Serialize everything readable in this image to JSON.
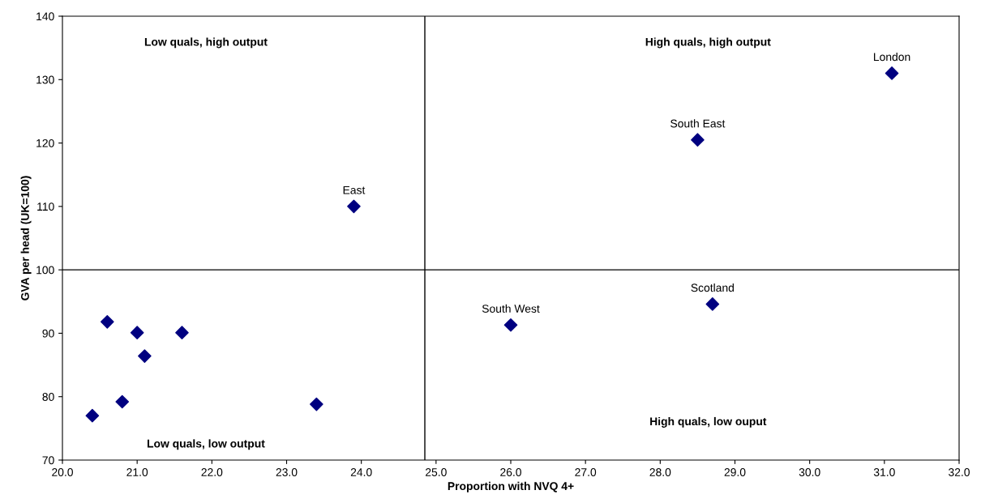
{
  "chart_data": {
    "type": "scatter",
    "xlabel": "Proportion with NVQ 4+",
    "ylabel": "GVA per head (UK=100)",
    "x": [
      20.6,
      21.0,
      21.6,
      21.1,
      20.8,
      20.4,
      23.4,
      23.9,
      26.0,
      28.7,
      28.5,
      31.1
    ],
    "values": [
      91.8,
      90.1,
      90.1,
      86.4,
      79.2,
      77.0,
      78.8,
      110.0,
      91.3,
      94.6,
      120.5,
      131.0
    ],
    "color": "#000080",
    "marker": "diamond",
    "xlim": [
      20,
      32
    ],
    "xticks": [
      {
        "value": 20,
        "label": "20.0"
      },
      {
        "value": 21,
        "label": "21.0"
      },
      {
        "value": 22,
        "label": "22.0"
      },
      {
        "value": 23,
        "label": "23.0"
      },
      {
        "value": 24,
        "label": "24.0"
      },
      {
        "value": 25,
        "label": "25.0"
      },
      {
        "value": 26,
        "label": "26.0"
      },
      {
        "value": 27,
        "label": "27.0"
      },
      {
        "value": 28,
        "label": "28.0"
      },
      {
        "value": 29,
        "label": "29.0"
      },
      {
        "value": 30,
        "label": "30.0"
      },
      {
        "value": 31,
        "label": "31.0"
      },
      {
        "value": 32,
        "label": "32.0"
      }
    ],
    "ylim": [
      70,
      140
    ],
    "yticks": [
      70,
      80,
      90,
      100,
      110,
      120,
      130,
      140
    ],
    "ref_lines": [
      {
        "axis": "x",
        "value": 24.85,
        "color": "#000000"
      },
      {
        "axis": "y",
        "value": 100,
        "color": "#000000"
      }
    ],
    "annotations": [
      {
        "text": "East",
        "x": 23.9,
        "y": 110.0
      },
      {
        "text": "South West",
        "x": 26.0,
        "y": 91.3
      },
      {
        "text": "Scotland",
        "x": 28.7,
        "y": 94.6
      },
      {
        "text": "South East",
        "x": 28.5,
        "y": 120.5
      },
      {
        "text": "London",
        "x": 31.1,
        "y": 131.0
      },
      "Low quals, high output",
      "High quals, high output",
      "Low quals, low output",
      "High quals, low ouput"
    ],
    "grid": false,
    "legend": false
  }
}
